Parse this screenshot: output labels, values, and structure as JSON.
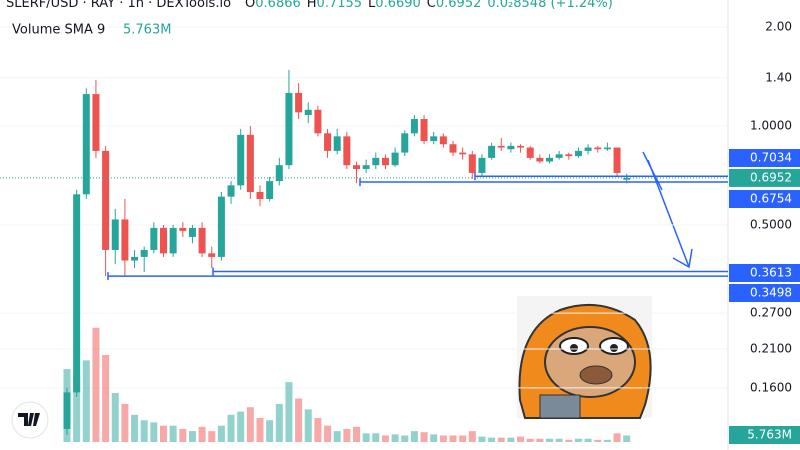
{
  "chart_data": {
    "type": "candlestick",
    "title": "SLERF/USD · RAY · 1h · DEXTools.io",
    "ohlc_legend": [
      {
        "key": "O",
        "text": "0.6866"
      },
      {
        "key": "H",
        "text": "0.7155"
      },
      {
        "key": "L",
        "text": "0.6690"
      },
      {
        "key": "C",
        "text": "0.6952"
      }
    ],
    "change": "0.0₂8548 (+1.24%)",
    "indicator": {
      "name": "Volume SMA 9",
      "value": {
        "value": 5763000,
        "label": "5.763M"
      }
    },
    "log_scale": true,
    "ylim": [
      0.108,
      2.415
    ],
    "yticks": [
      {
        "value": 2,
        "label": "2.00"
      },
      {
        "value": 1.4,
        "label": "1.40"
      },
      {
        "value": 1,
        "label": "1.0000"
      },
      {
        "value": 0.5,
        "label": "0.5000"
      },
      {
        "value": 0.27,
        "label": "0.2700"
      },
      {
        "value": 0.21,
        "label": "0.2100"
      },
      {
        "value": 0.16,
        "label": "0.1600"
      }
    ],
    "up_color": "#26a69a",
    "down_color": "#ef5350",
    "open": [
      0.12,
      0.155,
      0.62,
      1.25,
      0.84,
      0.42,
      0.52,
      0.39,
      0.4,
      0.42,
      0.49,
      0.41,
      0.49,
      0.46,
      0.49,
      0.41,
      0.4,
      0.61,
      0.66,
      0.94,
      0.63,
      0.6,
      0.68,
      0.76,
      1.26,
      1.08,
      1.12,
      0.95,
      0.84,
      0.93,
      0.76,
      0.74,
      0.76,
      0.8,
      0.76,
      0.83,
      0.95,
      1.05,
      0.9,
      0.93,
      0.88,
      0.83,
      0.82,
      0.72,
      0.8,
      0.87,
      0.85,
      0.87,
      0.86,
      0.8,
      0.78,
      0.8,
      0.82,
      0.81,
      0.84,
      0.86,
      0.85,
      0.86,
      0.6866
    ],
    "high": [
      0.16,
      0.64,
      1.3,
      1.38,
      0.87,
      0.56,
      0.6,
      0.42,
      0.43,
      0.51,
      0.5,
      0.5,
      0.51,
      0.5,
      0.51,
      0.43,
      0.63,
      0.68,
      0.98,
      1.0,
      0.66,
      0.7,
      0.8,
      1.48,
      1.35,
      1.18,
      1.15,
      0.98,
      0.98,
      0.96,
      0.78,
      0.79,
      0.83,
      0.82,
      0.86,
      0.97,
      1.08,
      1.08,
      0.96,
      0.95,
      0.9,
      0.86,
      0.84,
      0.82,
      0.89,
      0.92,
      0.89,
      0.88,
      0.87,
      0.82,
      0.82,
      0.84,
      0.83,
      0.86,
      0.88,
      0.87,
      0.89,
      0.86,
      0.7155
    ],
    "low": [
      0.115,
      0.15,
      0.6,
      0.8,
      0.35,
      0.38,
      0.35,
      0.37,
      0.36,
      0.41,
      0.4,
      0.4,
      0.46,
      0.44,
      0.4,
      0.37,
      0.39,
      0.58,
      0.64,
      0.6,
      0.57,
      0.59,
      0.66,
      0.74,
      1.05,
      1.02,
      0.93,
      0.8,
      0.82,
      0.74,
      0.67,
      0.72,
      0.74,
      0.74,
      0.75,
      0.81,
      0.93,
      0.88,
      0.88,
      0.86,
      0.81,
      0.79,
      0.69,
      0.7,
      0.79,
      0.84,
      0.83,
      0.83,
      0.79,
      0.77,
      0.77,
      0.79,
      0.79,
      0.8,
      0.82,
      0.83,
      0.84,
      0.7,
      0.669
    ],
    "close": [
      0.155,
      0.62,
      1.25,
      0.84,
      0.42,
      0.52,
      0.39,
      0.4,
      0.42,
      0.49,
      0.41,
      0.49,
      0.48,
      0.49,
      0.41,
      0.4,
      0.61,
      0.66,
      0.94,
      0.63,
      0.6,
      0.68,
      0.76,
      1.26,
      1.1,
      1.12,
      0.95,
      0.84,
      0.93,
      0.76,
      0.74,
      0.76,
      0.8,
      0.76,
      0.83,
      0.95,
      1.05,
      0.9,
      0.93,
      0.88,
      0.83,
      0.82,
      0.72,
      0.8,
      0.87,
      0.86,
      0.87,
      0.86,
      0.8,
      0.78,
      0.8,
      0.82,
      0.81,
      0.84,
      0.86,
      0.85,
      0.86,
      0.72,
      0.6952
    ],
    "volume_ylim": [
      0,
      250000000
    ],
    "volume": [
      67000000,
      60000000,
      75000000,
      105000000,
      80000000,
      45000000,
      35000000,
      25000000,
      20000000,
      18000000,
      15000000,
      15000000,
      12000000,
      10000000,
      14000000,
      10000000,
      15000000,
      25000000,
      28000000,
      32000000,
      22000000,
      20000000,
      35000000,
      55000000,
      40000000,
      30000000,
      22000000,
      15000000,
      10000000,
      12000000,
      14000000,
      8000000,
      8000000,
      6000000,
      7000000,
      6000000,
      10000000,
      9000000,
      7000000,
      6000000,
      6000000,
      6000000,
      10000000,
      5000000,
      4000000,
      4000000,
      4000000,
      5000000,
      3000000,
      3000000,
      3000000,
      3000000,
      2000000,
      3000000,
      3000000,
      2000000,
      2000000,
      8000000,
      6000000
    ],
    "price_lines": [
      {
        "value": 0.7034,
        "label": "0.7034",
        "color": "#2962ff"
      },
      {
        "value": 0.6754,
        "label": "0.6754",
        "color": "#2962ff"
      },
      {
        "value": 0.3613,
        "label": "0.3613",
        "color": "#2962ff"
      },
      {
        "value": 0.3498,
        "label": "0.3498",
        "color": "#2962ff"
      }
    ],
    "last_price": {
      "value": 0.6952,
      "label": "0.6952",
      "color": "#26a69a"
    }
  }
}
